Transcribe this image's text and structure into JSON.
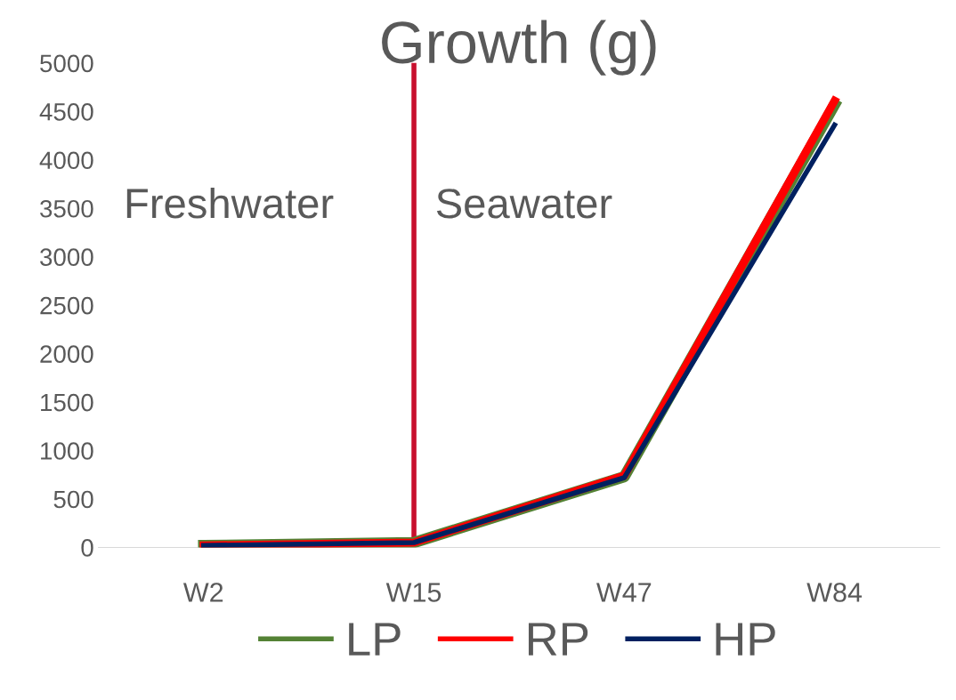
{
  "chart_data": {
    "type": "line",
    "title": "Growth (g)",
    "categories": [
      "W2",
      "W15",
      "W47",
      "W84"
    ],
    "series": [
      {
        "name": "LP",
        "color": "#548235",
        "values": [
          20,
          50,
          730,
          4570
        ]
      },
      {
        "name": "RP",
        "color": "#ff0000",
        "values": [
          20,
          50,
          740,
          4610
        ]
      },
      {
        "name": "HP",
        "color": "#002060",
        "values": [
          20,
          50,
          720,
          4360
        ]
      }
    ],
    "ylim": [
      0,
      5000
    ],
    "yticks": [
      0,
      500,
      1000,
      1500,
      2000,
      2500,
      3000,
      3500,
      4000,
      4500,
      5000
    ],
    "ref_lines": [
      {
        "axis": "x",
        "value": "W15",
        "color": "#c8102e"
      }
    ],
    "annotations": [
      "Freshwater",
      "Seawater"
    ],
    "grid": false,
    "legend": "bottom",
    "marker": "none",
    "line_style": "solid"
  }
}
